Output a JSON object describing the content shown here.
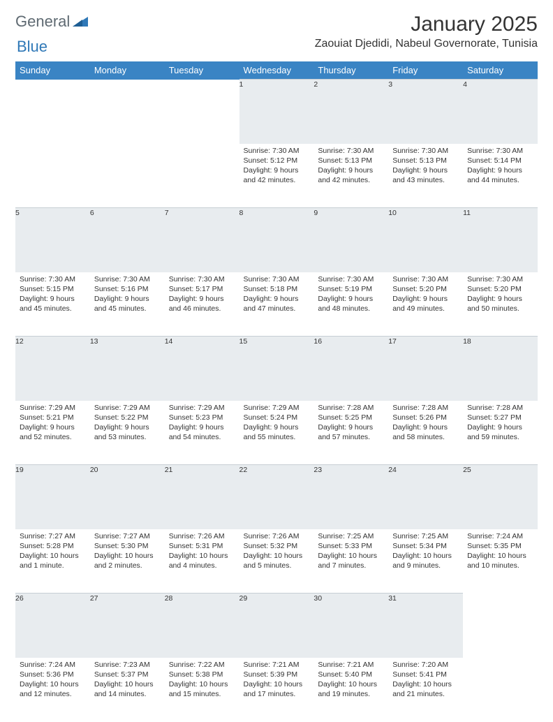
{
  "logo": {
    "text1": "General",
    "text2": "Blue"
  },
  "title": "January 2025",
  "location": "Zaouiat Djedidi, Nabeul Governorate, Tunisia",
  "colors": {
    "header_bg": "#3a84c4",
    "header_fg": "#ffffff",
    "daynum_bg": "#e8ecef",
    "daynum_border": "#c7ced4",
    "text": "#333333",
    "logo_gray": "#5f6a72",
    "logo_blue": "#2f78b7",
    "page_bg": "#ffffff"
  },
  "fonts": {
    "month_title_size": 30,
    "location_size": 16,
    "dayhead_size": 13,
    "daynum_size": 12.5,
    "body_size": 10.5
  },
  "day_headers": [
    "Sunday",
    "Monday",
    "Tuesday",
    "Wednesday",
    "Thursday",
    "Friday",
    "Saturday"
  ],
  "weeks": [
    [
      null,
      null,
      null,
      {
        "n": "1",
        "sr": "7:30 AM",
        "ss": "5:12 PM",
        "dl": "9 hours and 42 minutes."
      },
      {
        "n": "2",
        "sr": "7:30 AM",
        "ss": "5:13 PM",
        "dl": "9 hours and 42 minutes."
      },
      {
        "n": "3",
        "sr": "7:30 AM",
        "ss": "5:13 PM",
        "dl": "9 hours and 43 minutes."
      },
      {
        "n": "4",
        "sr": "7:30 AM",
        "ss": "5:14 PM",
        "dl": "9 hours and 44 minutes."
      }
    ],
    [
      {
        "n": "5",
        "sr": "7:30 AM",
        "ss": "5:15 PM",
        "dl": "9 hours and 45 minutes."
      },
      {
        "n": "6",
        "sr": "7:30 AM",
        "ss": "5:16 PM",
        "dl": "9 hours and 45 minutes."
      },
      {
        "n": "7",
        "sr": "7:30 AM",
        "ss": "5:17 PM",
        "dl": "9 hours and 46 minutes."
      },
      {
        "n": "8",
        "sr": "7:30 AM",
        "ss": "5:18 PM",
        "dl": "9 hours and 47 minutes."
      },
      {
        "n": "9",
        "sr": "7:30 AM",
        "ss": "5:19 PM",
        "dl": "9 hours and 48 minutes."
      },
      {
        "n": "10",
        "sr": "7:30 AM",
        "ss": "5:20 PM",
        "dl": "9 hours and 49 minutes."
      },
      {
        "n": "11",
        "sr": "7:30 AM",
        "ss": "5:20 PM",
        "dl": "9 hours and 50 minutes."
      }
    ],
    [
      {
        "n": "12",
        "sr": "7:29 AM",
        "ss": "5:21 PM",
        "dl": "9 hours and 52 minutes."
      },
      {
        "n": "13",
        "sr": "7:29 AM",
        "ss": "5:22 PM",
        "dl": "9 hours and 53 minutes."
      },
      {
        "n": "14",
        "sr": "7:29 AM",
        "ss": "5:23 PM",
        "dl": "9 hours and 54 minutes."
      },
      {
        "n": "15",
        "sr": "7:29 AM",
        "ss": "5:24 PM",
        "dl": "9 hours and 55 minutes."
      },
      {
        "n": "16",
        "sr": "7:28 AM",
        "ss": "5:25 PM",
        "dl": "9 hours and 57 minutes."
      },
      {
        "n": "17",
        "sr": "7:28 AM",
        "ss": "5:26 PM",
        "dl": "9 hours and 58 minutes."
      },
      {
        "n": "18",
        "sr": "7:28 AM",
        "ss": "5:27 PM",
        "dl": "9 hours and 59 minutes."
      }
    ],
    [
      {
        "n": "19",
        "sr": "7:27 AM",
        "ss": "5:28 PM",
        "dl": "10 hours and 1 minute."
      },
      {
        "n": "20",
        "sr": "7:27 AM",
        "ss": "5:30 PM",
        "dl": "10 hours and 2 minutes."
      },
      {
        "n": "21",
        "sr": "7:26 AM",
        "ss": "5:31 PM",
        "dl": "10 hours and 4 minutes."
      },
      {
        "n": "22",
        "sr": "7:26 AM",
        "ss": "5:32 PM",
        "dl": "10 hours and 5 minutes."
      },
      {
        "n": "23",
        "sr": "7:25 AM",
        "ss": "5:33 PM",
        "dl": "10 hours and 7 minutes."
      },
      {
        "n": "24",
        "sr": "7:25 AM",
        "ss": "5:34 PM",
        "dl": "10 hours and 9 minutes."
      },
      {
        "n": "25",
        "sr": "7:24 AM",
        "ss": "5:35 PM",
        "dl": "10 hours and 10 minutes."
      }
    ],
    [
      {
        "n": "26",
        "sr": "7:24 AM",
        "ss": "5:36 PM",
        "dl": "10 hours and 12 minutes."
      },
      {
        "n": "27",
        "sr": "7:23 AM",
        "ss": "5:37 PM",
        "dl": "10 hours and 14 minutes."
      },
      {
        "n": "28",
        "sr": "7:22 AM",
        "ss": "5:38 PM",
        "dl": "10 hours and 15 minutes."
      },
      {
        "n": "29",
        "sr": "7:21 AM",
        "ss": "5:39 PM",
        "dl": "10 hours and 17 minutes."
      },
      {
        "n": "30",
        "sr": "7:21 AM",
        "ss": "5:40 PM",
        "dl": "10 hours and 19 minutes."
      },
      {
        "n": "31",
        "sr": "7:20 AM",
        "ss": "5:41 PM",
        "dl": "10 hours and 21 minutes."
      },
      null
    ]
  ],
  "labels": {
    "sunrise": "Sunrise:",
    "sunset": "Sunset:",
    "daylight": "Daylight:"
  }
}
